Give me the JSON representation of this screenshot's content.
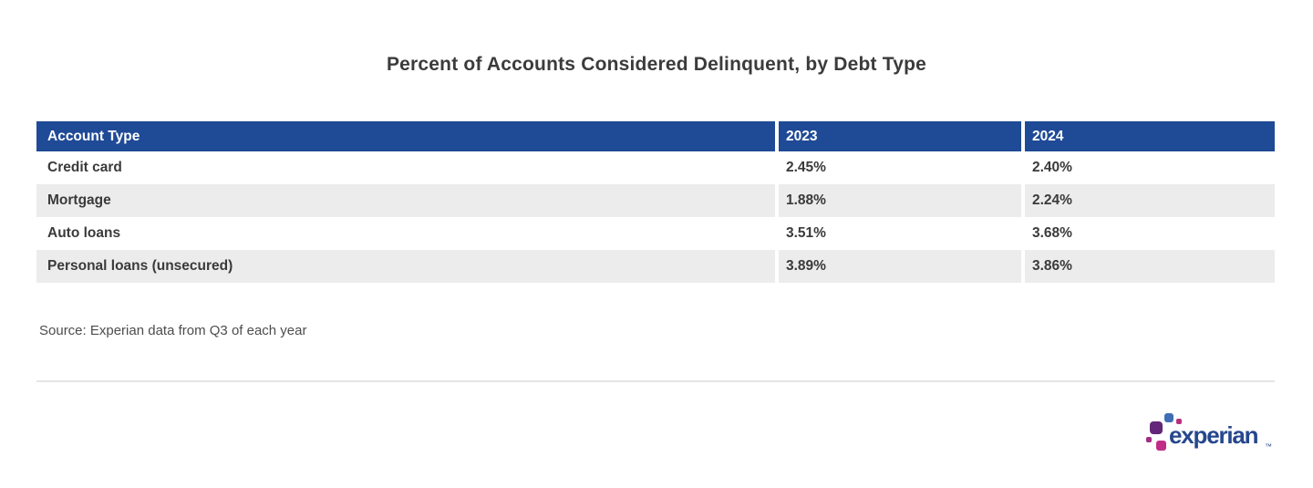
{
  "page": {
    "title": "Percent of Accounts Considered Delinquent, by Debt Type",
    "source_note": "Source: Experian data from Q3 of each year"
  },
  "chart_data": {
    "type": "table",
    "title": "Percent of Accounts Considered Delinquent, by Debt Type",
    "columns": [
      "Account Type",
      "2023",
      "2024"
    ],
    "rows": [
      [
        "Credit card",
        "2.45%",
        "2.40%"
      ],
      [
        "Mortgage",
        "1.88%",
        "2.24%"
      ],
      [
        "Auto loans",
        "3.51%",
        "3.68%"
      ],
      [
        "Personal loans (unsecured)",
        "3.89%",
        "3.86%"
      ]
    ],
    "values_numeric_percent": {
      "series": [
        {
          "name": "2023",
          "values": [
            2.45,
            1.88,
            3.51,
            3.89
          ]
        },
        {
          "name": "2024",
          "values": [
            2.4,
            2.24,
            3.68,
            3.86
          ]
        }
      ],
      "categories": [
        "Credit card",
        "Mortgage",
        "Auto loans",
        "Personal loans (unsecured)"
      ]
    },
    "source": "Source: Experian data from Q3 of each year"
  },
  "table": {
    "columns": [
      "Account Type",
      "2023",
      "2024"
    ],
    "rows": [
      {
        "label": "Credit card",
        "v2023": "2.45%",
        "v2024": "2.40%"
      },
      {
        "label": "Mortgage",
        "v2023": "1.88%",
        "v2024": "2.24%"
      },
      {
        "label": "Auto loans",
        "v2023": "3.51%",
        "v2024": "3.68%"
      },
      {
        "label": "Personal loans (unsecured)",
        "v2023": "3.89%",
        "v2024": "3.86%"
      }
    ]
  },
  "logo": {
    "text": "experian",
    "trademark": "™"
  },
  "colors": {
    "header_bg": "#1F4A96",
    "header_text": "#FFFFFF",
    "alt_row_bg": "#ECECEC",
    "body_text": "#3A3A3A",
    "source_text": "#4D4D4D",
    "divider": "#E5E5E5",
    "logo_text": "#26478D",
    "logo_blue": "#406EB3",
    "logo_purple": "#632678",
    "logo_magenta": "#BA2F7D",
    "logo_pink": "#C12C87"
  }
}
